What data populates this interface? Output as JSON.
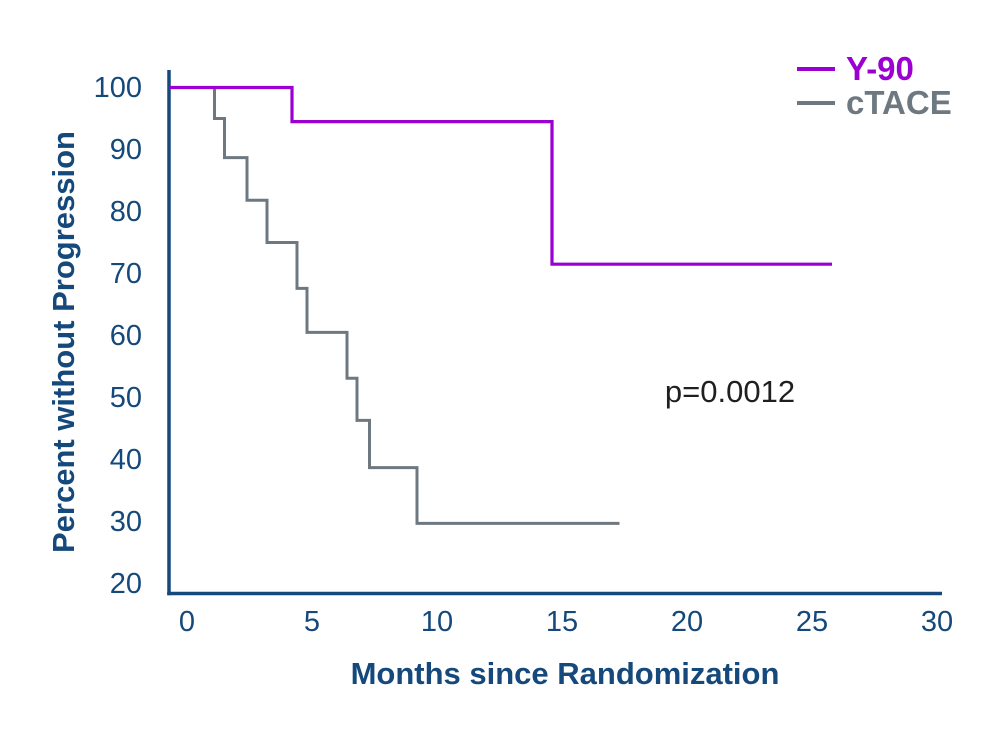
{
  "chart": {
    "ylabel": "Percent without Progression",
    "xlabel": "Months since Randomization"
  },
  "chart_data": {
    "type": "line",
    "subtype": "kaplan-meier-step",
    "title": "",
    "xlabel": "Months since Randomization",
    "ylabel": "Percent without Progression",
    "xlim": [
      0,
      30
    ],
    "ylim": [
      20,
      100
    ],
    "xticks": [
      0,
      5,
      10,
      15,
      20,
      25,
      30
    ],
    "yticks": [
      100,
      90,
      80,
      70,
      60,
      50,
      40,
      30,
      20
    ],
    "grid": false,
    "tick_marks": false,
    "legend_position": "top-right",
    "axis_color": "#15497B",
    "annotation": {
      "text": "p=0.0012",
      "x": 21.5,
      "y": 50.8
    },
    "series": [
      {
        "name": "Y-90",
        "color": "#9B00D3",
        "steps": [
          {
            "t": 0,
            "v": 100
          },
          {
            "t": 4.2,
            "v": 94.5
          },
          {
            "t": 14.6,
            "v": 71.5
          }
        ],
        "end_t": 25.8
      },
      {
        "name": "cTACE",
        "color": "#6E7880",
        "steps": [
          {
            "t": 0,
            "v": 100
          },
          {
            "t": 1.1,
            "v": 95.0
          },
          {
            "t": 1.5,
            "v": 88.7
          },
          {
            "t": 2.4,
            "v": 81.8
          },
          {
            "t": 3.2,
            "v": 75.0
          },
          {
            "t": 4.4,
            "v": 67.6
          },
          {
            "t": 4.8,
            "v": 60.5
          },
          {
            "t": 6.4,
            "v": 53.1
          },
          {
            "t": 6.8,
            "v": 46.3
          },
          {
            "t": 7.3,
            "v": 38.7
          },
          {
            "t": 9.2,
            "v": 29.7
          }
        ],
        "end_t": 17.3
      }
    ]
  }
}
